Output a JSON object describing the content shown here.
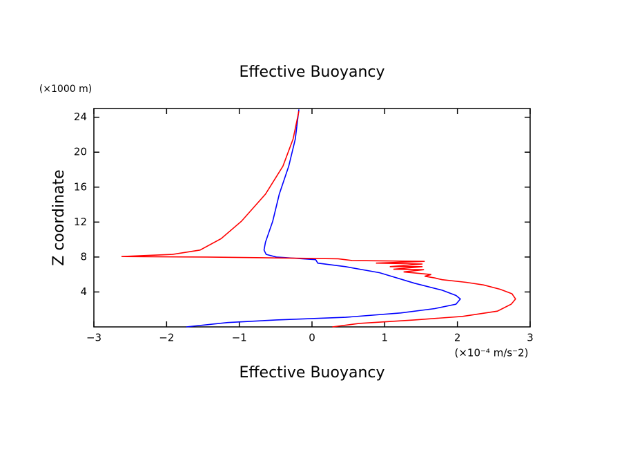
{
  "chart_data": {
    "type": "line",
    "title": "Effective Buoyancy",
    "x_label": "Effective Buoyancy",
    "x_units": "(×10⁻⁴ m/s⁻2)",
    "y_label": "Z coordinate",
    "y_units": "(×1000 m)",
    "xlim": [
      -3,
      3
    ],
    "ylim": [
      0,
      25
    ],
    "xticks": [
      {
        "value": -3,
        "label": "−3"
      },
      {
        "value": -2,
        "label": "−2"
      },
      {
        "value": -1,
        "label": "−1"
      },
      0,
      1,
      2,
      3
    ],
    "yticks": [
      4,
      8,
      12,
      16,
      20,
      24
    ],
    "series": [
      {
        "color": "#0000ff",
        "x": [
          -0.18,
          -0.23,
          -0.32,
          -0.45,
          -0.54,
          -0.64,
          -0.66,
          -0.63,
          -0.49,
          0.05,
          0.08,
          0.46,
          0.93,
          1.41,
          1.79,
          1.98,
          2.04,
          1.98,
          1.69,
          1.22,
          0.46,
          -0.49,
          -1.16,
          -1.73
        ],
        "y": [
          24.9,
          21.5,
          18.4,
          15.2,
          12.1,
          9.7,
          8.8,
          8.3,
          8.0,
          7.7,
          7.3,
          6.9,
          6.2,
          5.0,
          4.2,
          3.6,
          3.2,
          2.6,
          2.1,
          1.6,
          1.1,
          0.8,
          0.5,
          0.0
        ]
      },
      {
        "color": "#ff0000",
        "x": [
          -0.18,
          -0.26,
          -0.4,
          -0.64,
          -0.97,
          -1.25,
          -1.54,
          -1.92,
          -2.62,
          -1.44,
          0.36,
          0.55,
          1.55,
          0.88,
          1.52,
          1.07,
          1.52,
          1.12,
          1.54,
          1.26,
          1.64,
          1.55,
          1.69,
          1.79,
          2.12,
          2.36,
          2.59,
          2.75,
          2.8,
          2.74,
          2.55,
          2.07,
          1.41,
          0.65,
          0.28
        ],
        "y": [
          24.7,
          21.5,
          18.4,
          15.2,
          12.1,
          10.1,
          8.8,
          8.3,
          8.05,
          8.0,
          7.8,
          7.6,
          7.5,
          7.3,
          7.2,
          6.9,
          6.9,
          6.6,
          6.55,
          6.3,
          6.0,
          5.8,
          5.6,
          5.4,
          5.1,
          4.8,
          4.3,
          3.8,
          3.2,
          2.6,
          1.8,
          1.2,
          0.8,
          0.4,
          0.0
        ]
      }
    ]
  }
}
